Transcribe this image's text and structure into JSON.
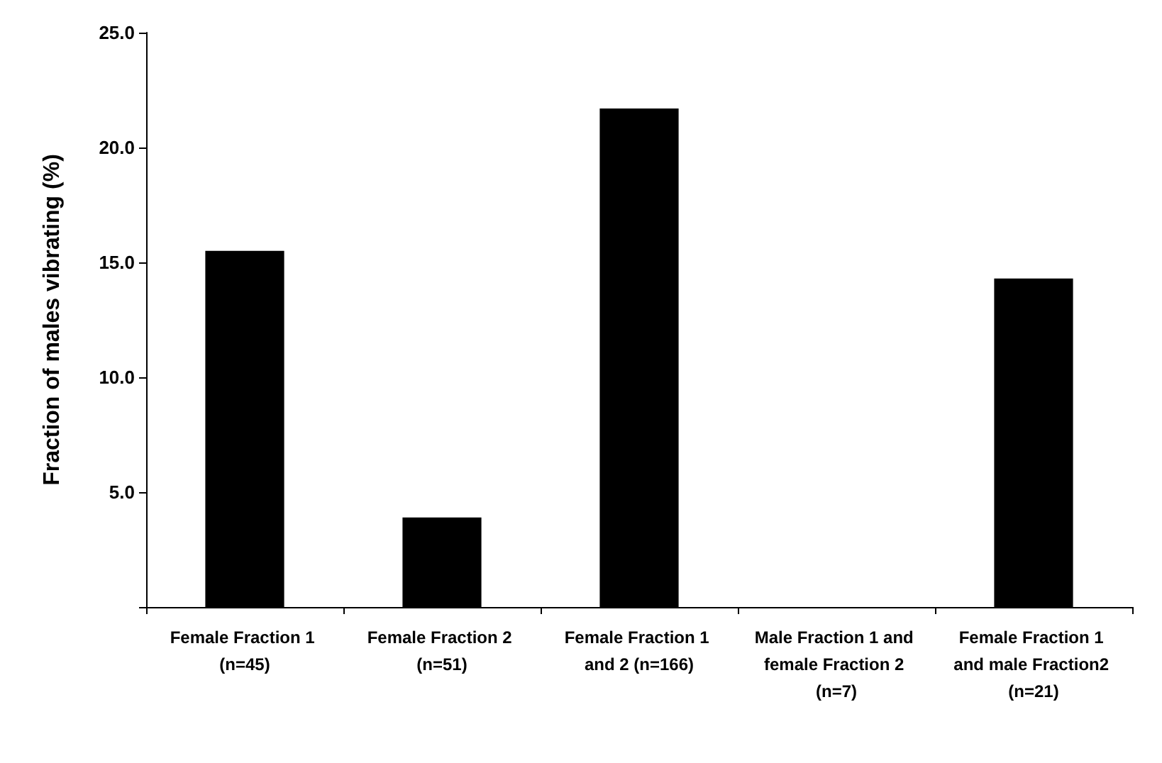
{
  "chart_data": {
    "type": "bar",
    "ylabel": "Fraction of males vibrating (%)",
    "categories": [
      "Female Fraction 1 (n=45)",
      "Female Fraction 2 (n=51)",
      "Female Fraction 1 and 2 (n=166)",
      "Male Fraction 1 and female Fraction 2 (n=7)",
      "Female Fraction 1 and male Fraction2 (n=21)"
    ],
    "values": [
      15.5,
      3.9,
      21.7,
      0,
      14.3
    ],
    "color": "#000000",
    "ylim": [
      0,
      25
    ],
    "yticks": [
      {
        "value": 0,
        "label": null
      },
      {
        "value": 5,
        "label": "5.0"
      },
      {
        "value": 10,
        "label": "10.0"
      },
      {
        "value": 15,
        "label": "15.0"
      },
      {
        "value": 20,
        "label": "20.0"
      },
      {
        "value": 25,
        "label": "25.0"
      }
    ],
    "grid": false
  }
}
